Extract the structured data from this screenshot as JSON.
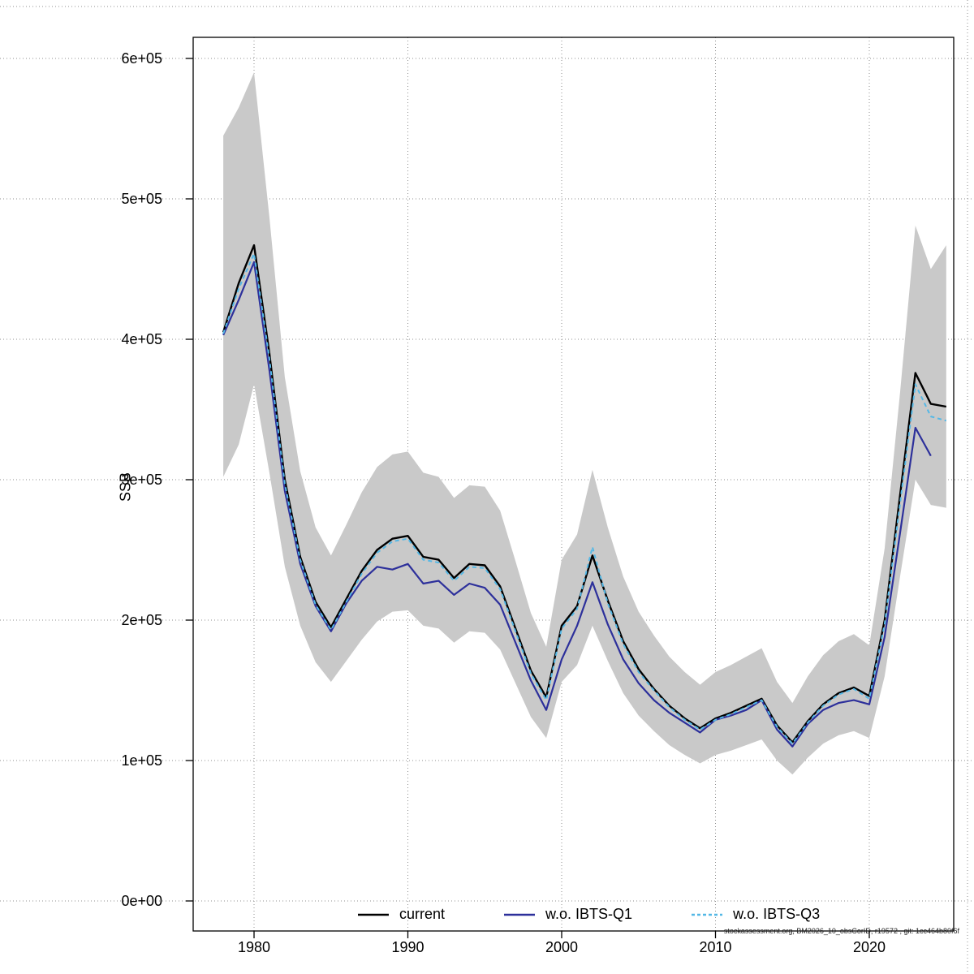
{
  "figure": {
    "footnote": "stockassessment.org, BM2026_10_obsCorID, r19572 , git: 1cc464b80f6f",
    "colors": {
      "current": "#000000",
      "wo_ibts_q1": "#2d309b",
      "wo_ibts_q3": "#54b8e6",
      "band": "#c9c9c9",
      "grid": "#8f8f8f"
    }
  },
  "legend": [
    {
      "label": "current",
      "color": "#000000",
      "dash": "solid"
    },
    {
      "label": "w.o. IBTS-Q1",
      "color": "#2d309b",
      "dash": "solid"
    },
    {
      "label": "w.o. IBTS-Q3",
      "color": "#54b8e6",
      "dash": "dashed"
    }
  ],
  "chart_data": {
    "type": "line",
    "title": "",
    "xlabel": "",
    "ylabel": "SSB",
    "grid": true,
    "legend_position": "bottom-center",
    "xlim": [
      1976,
      2025.5
    ],
    "ylim": [
      -20000,
      615000
    ],
    "xticks": [
      1980,
      1990,
      2000,
      2010,
      2020
    ],
    "yticks": [
      0,
      100000,
      200000,
      300000,
      400000,
      500000,
      600000
    ],
    "ytick_labels": [
      "0e+00",
      "1e+05",
      "2e+05",
      "3e+05",
      "4e+05",
      "5e+05",
      "6e+05"
    ],
    "x": [
      1978,
      1979,
      1980,
      1981,
      1982,
      1983,
      1984,
      1985,
      1986,
      1987,
      1988,
      1989,
      1990,
      1991,
      1992,
      1993,
      1994,
      1995,
      1996,
      1997,
      1998,
      1999,
      2000,
      2001,
      2002,
      2003,
      2004,
      2005,
      2006,
      2007,
      2008,
      2009,
      2010,
      2011,
      2012,
      2013,
      2014,
      2015,
      2016,
      2017,
      2018,
      2019,
      2020,
      2021,
      2022,
      2023,
      2024,
      2025
    ],
    "series": [
      {
        "name": "current",
        "color": "#000000",
        "dash": "solid",
        "width": 2.4,
        "values": [
          405000,
          440000,
          467000,
          390000,
          300000,
          245000,
          213000,
          195000,
          215000,
          235000,
          250000,
          258000,
          260000,
          245000,
          243000,
          230000,
          240000,
          239000,
          224000,
          194000,
          164000,
          145000,
          196000,
          210000,
          246000,
          214000,
          185000,
          165000,
          151000,
          139000,
          130000,
          123000,
          130000,
          134000,
          139000,
          144000,
          125000,
          113000,
          128000,
          140000,
          148000,
          152000,
          146000,
          200000,
          289000,
          376000,
          354000,
          352000
        ]
      },
      {
        "name": "w.o. IBTS-Q1",
        "color": "#2d309b",
        "dash": "solid",
        "width": 2.2,
        "values": [
          403000,
          428000,
          455000,
          378000,
          292000,
          240000,
          210000,
          192000,
          212000,
          228000,
          238000,
          236000,
          240000,
          226000,
          228000,
          218000,
          226000,
          223000,
          211000,
          184000,
          157000,
          136000,
          172000,
          196000,
          227000,
          197000,
          172000,
          155000,
          143000,
          134000,
          127000,
          120000,
          129000,
          132000,
          136000,
          143000,
          122000,
          110000,
          126000,
          136000,
          141000,
          143000,
          140000,
          188000,
          262000,
          337000,
          317000,
          null
        ]
      },
      {
        "name": "w.o. IBTS-Q3",
        "color": "#54b8e6",
        "dash": "dashed",
        "width": 2,
        "values": [
          404000,
          436000,
          461000,
          386000,
          297000,
          243000,
          211000,
          193000,
          213000,
          233000,
          248000,
          256000,
          258000,
          243000,
          241000,
          228000,
          238000,
          237000,
          222000,
          192000,
          162000,
          143000,
          194000,
          208000,
          252000,
          212000,
          183000,
          163000,
          150000,
          138000,
          129000,
          122000,
          129000,
          133000,
          138000,
          143000,
          124000,
          112000,
          127000,
          139000,
          147000,
          151000,
          144000,
          197000,
          283000,
          368000,
          345000,
          342000
        ]
      }
    ],
    "band": {
      "name": "confidence interval (current)",
      "color": "#c9c9c9",
      "lo": [
        302000,
        325000,
        368000,
        305000,
        238000,
        196000,
        170000,
        156000,
        171000,
        186000,
        199000,
        206000,
        207000,
        196000,
        194000,
        184000,
        192000,
        191000,
        179000,
        155000,
        131000,
        116000,
        156000,
        168000,
        196000,
        171000,
        148000,
        132000,
        121000,
        111000,
        104000,
        98000,
        104000,
        107000,
        111000,
        115000,
        100000,
        90000,
        102000,
        112000,
        118000,
        121000,
        116000,
        160000,
        231000,
        300000,
        282000,
        280000
      ],
      "hi": [
        545000,
        565000,
        590000,
        487000,
        373000,
        306000,
        266000,
        246000,
        268000,
        291000,
        309000,
        318000,
        320000,
        305000,
        302000,
        287000,
        296000,
        295000,
        278000,
        242000,
        205000,
        181000,
        243000,
        261000,
        307000,
        266000,
        231000,
        206000,
        189000,
        174000,
        163000,
        154000,
        163000,
        168000,
        174000,
        180000,
        156000,
        141000,
        160000,
        175000,
        185000,
        190000,
        182000,
        251000,
        362000,
        481000,
        450000,
        467000
      ]
    }
  }
}
